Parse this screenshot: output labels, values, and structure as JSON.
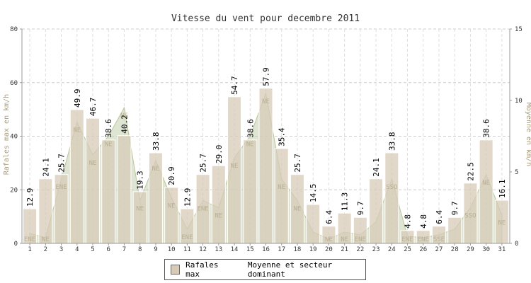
{
  "chart_data": {
    "type": "bar",
    "title": "Vitesse du vent pour decembre 2011",
    "ylabel_left": "Rafales max en km/h",
    "ylabel_right": "Moyenne en km/h",
    "ylim_left": [
      0,
      80
    ],
    "ylim_right": [
      0,
      15
    ],
    "yticks_left": [
      0,
      20,
      40,
      60,
      80
    ],
    "yticks_right": [
      0,
      5,
      10,
      15
    ],
    "grid": true,
    "categories": [
      "1",
      "2",
      "3",
      "4",
      "5",
      "6",
      "7",
      "8",
      "9",
      "10",
      "11",
      "12",
      "13",
      "14",
      "15",
      "16",
      "17",
      "18",
      "19",
      "20",
      "21",
      "22",
      "23",
      "24",
      "25",
      "26",
      "27",
      "28",
      "29",
      "30",
      "31"
    ],
    "series": [
      {
        "name": "Rafales max",
        "type": "bar",
        "color": "#d7cbb8",
        "values": [
          12.9,
          24.1,
          25.7,
          49.9,
          46.7,
          38.6,
          40.2,
          19.3,
          33.8,
          20.9,
          12.9,
          25.7,
          29.0,
          54.7,
          38.6,
          57.9,
          35.4,
          25.7,
          14.5,
          6.4,
          11.3,
          9.7,
          24.1,
          33.8,
          4.8,
          4.8,
          6.4,
          9.7,
          22.5,
          38.6,
          16.1
        ],
        "labels": [
          "12.9",
          "24.1",
          "25.7",
          "49.9",
          "46.7",
          "38.6",
          "40.2",
          "19.3",
          "33.8",
          "20.9",
          "12.9",
          "25.7",
          "29.0",
          "54.7",
          "38.6",
          "57.9",
          "35.4",
          "25.7",
          "14.5",
          "6.4",
          "11.3",
          "9.7",
          "24.1",
          "33.8",
          "4.8",
          "4.8",
          "6.4",
          "9.7",
          "22.5",
          "38.6",
          "16.1"
        ]
      },
      {
        "name": "Moyenne et secteur dominant",
        "type": "area",
        "color": "#c5cfae",
        "axis": "right",
        "values": [
          0.7,
          0.4,
          4.5,
          8.5,
          6.2,
          7.5,
          9.5,
          3.0,
          5.8,
          3.2,
          1.0,
          3.0,
          2.5,
          6.0,
          7.5,
          10.5,
          4.5,
          3.0,
          0.8,
          0.3,
          0.8,
          0.6,
          1.5,
          4.5,
          0.5,
          0.4,
          0.6,
          1.0,
          2.5,
          4.8,
          2.0
        ],
        "sectors": [
          "ENE",
          "NE",
          "ENE",
          "NE",
          "NE",
          "NE",
          "NE",
          "NE",
          "NE",
          "NE",
          "ENE",
          "ENE",
          "NE",
          "NE",
          "NE",
          "NE",
          "NE",
          "NE",
          "",
          "NE",
          "NE",
          "ENE",
          "",
          "SSO",
          "ENE",
          "ENE",
          "SSE",
          "",
          "SSO",
          "NE",
          "NE"
        ]
      }
    ],
    "legend": [
      "Rafales max",
      "Moyenne et secteur dominant"
    ],
    "legend_position": "bottom"
  }
}
